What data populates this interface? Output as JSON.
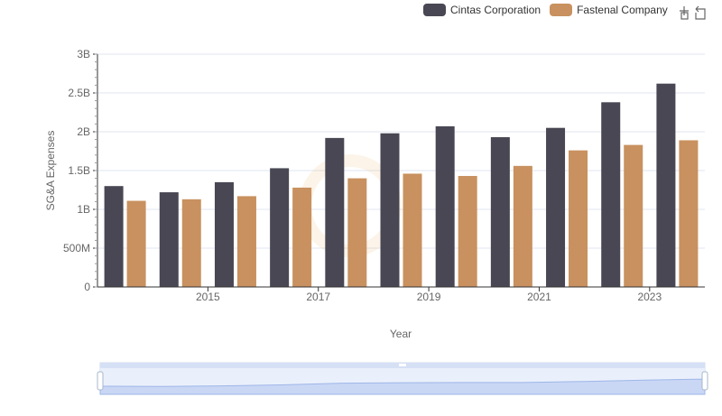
{
  "legend": [
    {
      "name": "Cintas Corporation",
      "color": "#484753"
    },
    {
      "name": "Fastenal Company",
      "color": "#c8915f"
    }
  ],
  "toolbar": {
    "zoom_icon": "zoom-icon",
    "restore_icon": "restore-icon"
  },
  "chart_data": {
    "type": "bar",
    "title": "",
    "xlabel": "Year",
    "ylabel": "SG&A Expenses",
    "x": [
      2014,
      2015,
      2016,
      2017,
      2018,
      2019,
      2020,
      2021,
      2022,
      2023,
      2024
    ],
    "x_tick_labels": [
      "2015",
      "2017",
      "2019",
      "2021",
      "2023"
    ],
    "y_tick_labels": [
      "0",
      "500M",
      "1B",
      "1.5B",
      "2B",
      "2.5B",
      "3B"
    ],
    "ylim": [
      0,
      3000000000
    ],
    "grid": true,
    "legend_position": "top-right",
    "series": [
      {
        "name": "Cintas Corporation",
        "color": "#484753",
        "values": [
          1300000000,
          1220000000,
          1350000000,
          1530000000,
          1920000000,
          1980000000,
          2070000000,
          1930000000,
          2050000000,
          2380000000,
          2620000000
        ]
      },
      {
        "name": "Fastenal Company",
        "color": "#c8915f",
        "values": [
          1110000000,
          1130000000,
          1170000000,
          1280000000,
          1400000000,
          1460000000,
          1430000000,
          1560000000,
          1760000000,
          1830000000,
          1890000000
        ]
      }
    ]
  }
}
